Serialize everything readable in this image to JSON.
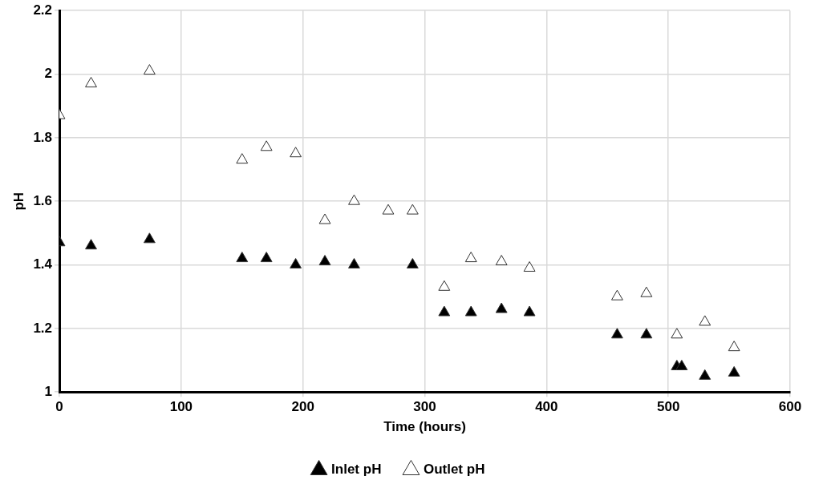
{
  "chart_data": {
    "type": "scatter",
    "xlabel": "Time (hours)",
    "ylabel": "pH",
    "marker": "triangle",
    "grid": true,
    "legend": "bottom",
    "xlim": [
      0,
      600
    ],
    "xticks": [
      0,
      100,
      200,
      300,
      400,
      500,
      600
    ],
    "ylim": [
      1,
      2.2
    ],
    "yticks": [
      1,
      1.2,
      1.4,
      1.6,
      1.8,
      2,
      2.2
    ],
    "series": [
      {
        "name": "Inlet pH",
        "color": "#000000",
        "x": [
          0,
          26,
          74,
          150,
          170,
          194,
          218,
          242,
          290,
          316,
          338,
          363,
          386,
          458,
          482,
          507,
          511,
          530,
          554
        ],
        "values": [
          1.47,
          1.46,
          1.48,
          1.42,
          1.42,
          1.4,
          1.41,
          1.4,
          1.4,
          1.25,
          1.25,
          1.26,
          1.25,
          1.18,
          1.18,
          1.08,
          1.08,
          1.05,
          1.06
        ]
      },
      {
        "name": "Outlet pH",
        "color": "#ffffff",
        "x": [
          0,
          26,
          74,
          150,
          170,
          194,
          218,
          242,
          270,
          290,
          316,
          338,
          363,
          386,
          458,
          482,
          507,
          530,
          554
        ],
        "values": [
          1.87,
          1.97,
          2.01,
          1.73,
          1.77,
          1.75,
          1.54,
          1.6,
          1.57,
          1.57,
          1.33,
          1.42,
          1.41,
          1.39,
          1.3,
          1.31,
          1.18,
          1.22,
          1.14
        ]
      }
    ]
  }
}
